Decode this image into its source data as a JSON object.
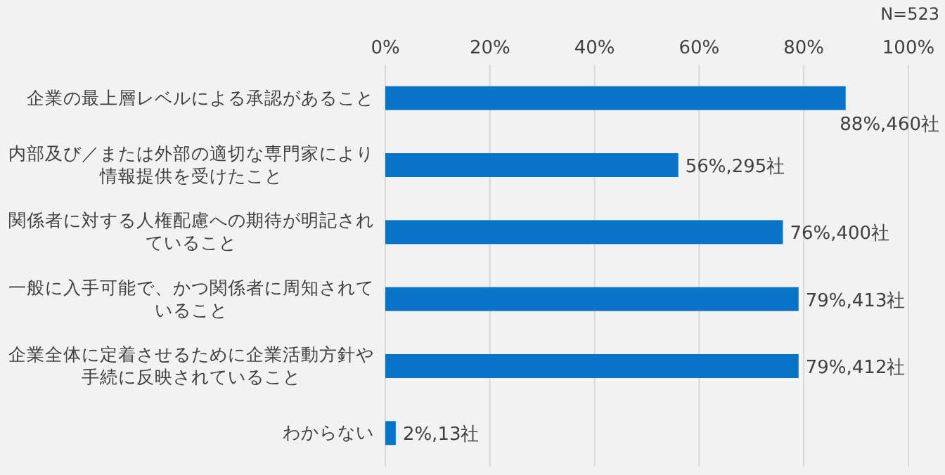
{
  "chart_data": {
    "type": "bar",
    "orientation": "horizontal",
    "categories": [
      "企業の最上層レベルによる承認があること",
      "内部及び／または外部の適切な専門家により情報提供を受けたこと",
      "関係者に対する人権配慮への期待が明記されていること",
      "一般に入手可能で、かつ関係者に周知されていること",
      "企業全体に定着させるために企業活動方針や手続に反映されていること",
      "わからない"
    ],
    "values": [
      88,
      56,
      76,
      79,
      79,
      2
    ],
    "value_labels": [
      "88%,460社",
      "56%,295社",
      "76%,400社",
      "79%,413社",
      "79%,412社",
      "2%,13社"
    ],
    "color": "#0874c8",
    "xlim": [
      0,
      100
    ],
    "xticks": [
      {
        "value": 0,
        "label": "0%"
      },
      {
        "value": 20,
        "label": "20%"
      },
      {
        "value": 40,
        "label": "40%"
      },
      {
        "value": 60,
        "label": "60%"
      },
      {
        "value": 80,
        "label": "80%"
      },
      {
        "value": 100,
        "label": "100%"
      }
    ],
    "grid": "x",
    "annotations": [
      "N=523"
    ]
  }
}
